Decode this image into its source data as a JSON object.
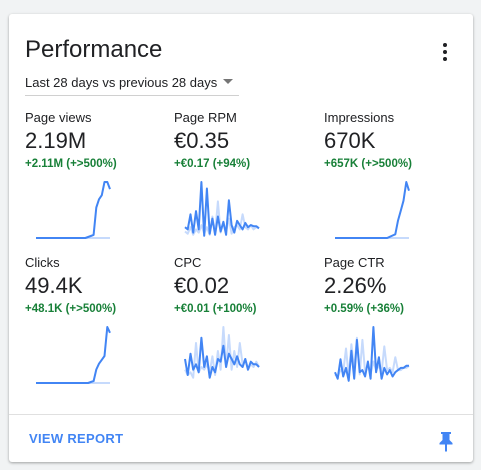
{
  "card": {
    "title": "Performance",
    "range_label": "Last 28 days vs previous 28 days",
    "view_report_label": "VIEW REPORT"
  },
  "colors": {
    "accent": "#4285f4",
    "previous_series": "#c6dafc",
    "positive_delta": "#188038"
  },
  "icons": {
    "menu": "more-vert-icon",
    "dropdown": "dropdown-caret-icon",
    "pin": "pin-icon"
  },
  "metrics": [
    {
      "label": "Page views",
      "value": "2.19M",
      "delta": "+2.11M (+>500%)",
      "current": [
        0,
        0,
        0,
        0,
        0,
        0,
        0,
        0,
        0,
        0,
        0,
        0,
        0,
        0,
        0,
        0,
        0,
        0,
        0,
        1,
        2,
        3,
        30,
        38,
        42,
        55,
        55,
        48
      ],
      "previous": [
        0,
        0,
        0,
        0,
        0,
        0,
        0,
        0,
        0,
        0,
        0,
        0,
        0,
        0,
        0,
        0,
        0,
        0,
        0,
        0,
        0,
        0,
        0,
        0,
        0,
        0,
        0,
        0
      ]
    },
    {
      "label": "Page RPM",
      "value": "€0.35",
      "delta": "+€0.17 (+94%)",
      "current": [
        10,
        8,
        22,
        5,
        25,
        8,
        52,
        2,
        46,
        4,
        18,
        3,
        20,
        6,
        15,
        3,
        35,
        12,
        5,
        16,
        12,
        8,
        14,
        10,
        12,
        11,
        11,
        9
      ],
      "previous": [
        6,
        4,
        10,
        3,
        8,
        5,
        12,
        4,
        10,
        3,
        20,
        4,
        34,
        5,
        14,
        6,
        18,
        4,
        10,
        12,
        8,
        22,
        10,
        8,
        12,
        8,
        10,
        9
      ]
    },
    {
      "label": "Impressions",
      "value": "670K",
      "delta": "+657K (+>500%)",
      "current": [
        0,
        0,
        0,
        0,
        0,
        0,
        0,
        0,
        0,
        0,
        0,
        0,
        0,
        0,
        0,
        0,
        0,
        0,
        0,
        0,
        1,
        2,
        3,
        14,
        22,
        30,
        45,
        38
      ],
      "previous": [
        0,
        0,
        0,
        0,
        0,
        0,
        0,
        0,
        0,
        0,
        0,
        0,
        0,
        0,
        0,
        0,
        0,
        0,
        0,
        0,
        0,
        0,
        0,
        0,
        0,
        0,
        0,
        0
      ]
    },
    {
      "label": "Clicks",
      "value": "49.4K",
      "delta": "+48.1K (+>500%)",
      "current": [
        0,
        0,
        0,
        0,
        0,
        0,
        0,
        0,
        0,
        0,
        0,
        0,
        0,
        0,
        0,
        0,
        0,
        0,
        0,
        0,
        1,
        2,
        14,
        20,
        24,
        28,
        58,
        52
      ],
      "previous": [
        0,
        0,
        0,
        0,
        0,
        0,
        0,
        0,
        0,
        0,
        0,
        0,
        0,
        0,
        0,
        0,
        0,
        0,
        0,
        0,
        0,
        0,
        0,
        0,
        0,
        0,
        0,
        0
      ]
    },
    {
      "label": "CPC",
      "value": "€0.02",
      "delta": "+€0.01 (+100%)",
      "current": [
        18,
        6,
        22,
        10,
        14,
        8,
        34,
        12,
        20,
        4,
        12,
        8,
        18,
        16,
        28,
        12,
        22,
        18,
        14,
        20,
        14,
        12,
        18,
        10,
        16,
        14,
        14,
        12
      ],
      "previous": [
        10,
        6,
        8,
        4,
        30,
        8,
        12,
        10,
        14,
        8,
        20,
        6,
        24,
        10,
        42,
        12,
        36,
        10,
        24,
        12,
        30,
        14,
        18,
        10,
        14,
        12,
        16,
        12
      ]
    },
    {
      "label": "Page CTR",
      "value": "2.26%",
      "delta": "+0.59% (+36%)",
      "current": [
        10,
        4,
        22,
        6,
        14,
        2,
        30,
        4,
        40,
        10,
        12,
        6,
        20,
        4,
        52,
        10,
        24,
        4,
        14,
        8,
        12,
        6,
        10,
        12,
        14,
        14,
        16,
        16
      ],
      "previous": [
        8,
        6,
        12,
        10,
        32,
        6,
        36,
        12,
        42,
        8,
        40,
        10,
        18,
        8,
        20,
        12,
        16,
        10,
        34,
        12,
        14,
        10,
        24,
        12,
        12,
        14,
        14,
        16
      ]
    }
  ]
}
